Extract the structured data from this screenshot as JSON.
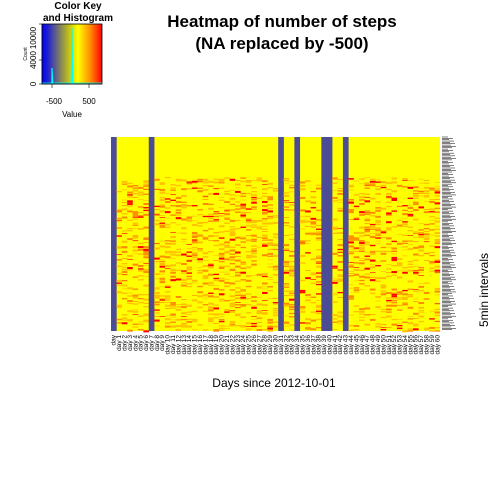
{
  "chart_data": {
    "type": "heatmap",
    "title_line1": "Heatmap of number of steps",
    "title_line2": "(NA replaced by -500)",
    "xlabel": "Days since 2012-10-01",
    "ylabel": "5min intervals",
    "color_key": {
      "title_line1": "Color Key",
      "title_line2": "and Histogram",
      "xlabel": "Value",
      "ylabel": "Count",
      "x_ticks": [
        -500,
        500
      ],
      "y_ticks": [
        0,
        4000,
        10000
      ],
      "x_range": [
        -500,
        806
      ],
      "y_range": [
        0,
        10000
      ],
      "colors": [
        "#0000ff",
        "#808080",
        "#ffff00",
        "#ff0000"
      ]
    },
    "day_labels": [
      "day",
      "day 1",
      "day 2",
      "day 3",
      "day 4",
      "day 5",
      "day 6",
      "day 7",
      "day 8",
      "day 9",
      "day 10",
      "day 11",
      "day 12",
      "day 13",
      "day 14",
      "day 15",
      "day 16",
      "day 17",
      "day 18",
      "day 19",
      "day 20",
      "day 21",
      "day 22",
      "day 23",
      "day 24",
      "day 25",
      "day 26",
      "day 27",
      "day 28",
      "day 29",
      "day 30",
      "day 31",
      "day 32",
      "day 33",
      "day 34",
      "day 35",
      "day 36",
      "day 37",
      "day 38",
      "day 39",
      "day 40",
      "day 41",
      "day 42",
      "day 43",
      "day 44",
      "day 45",
      "day 46",
      "day 47",
      "day 48",
      "day 49",
      "day 50",
      "day 51",
      "day 52",
      "day 53",
      "day 54",
      "day 55",
      "day 56",
      "day 57",
      "day 58",
      "day 59",
      "day 60"
    ],
    "na_days": [
      0,
      7,
      31,
      34,
      39,
      40,
      43
    ],
    "na_value": -500,
    "n_intervals": 288,
    "colors": {
      "na": "#4b4b96",
      "low": "#ffff00",
      "mid": "#ff8c00",
      "high": "#ff0000"
    }
  }
}
